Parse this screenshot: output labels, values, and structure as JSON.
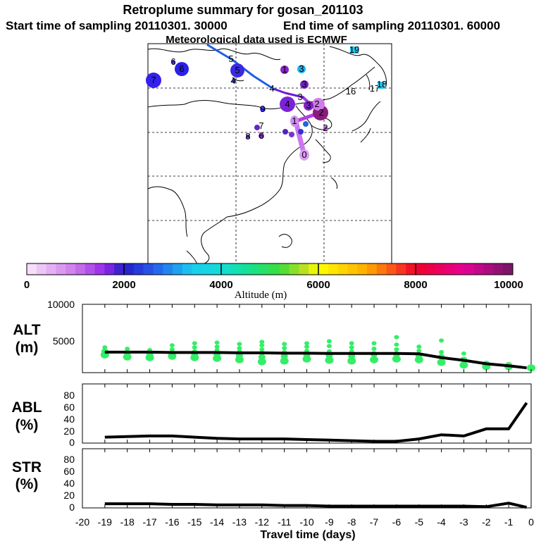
{
  "chart_data": [
    {
      "type": "scatter",
      "panel": "map",
      "title": "Retroplume summary for gosan_201103",
      "subtitle_left": "Start time of sampling 20110301. 30000",
      "subtitle_right": "End time of sampling 20110301. 60000",
      "subtitle_met": "Meteorological data used is ECMWF",
      "lon_range": [
        90,
        145
      ],
      "lat_range": [
        10,
        60
      ],
      "points": [
        {
          "label": "0",
          "lon": 126.2,
          "lat": 33.3,
          "alt": 700
        },
        {
          "label": "1",
          "lon": 124.8,
          "lat": 37.6,
          "alt": 1200
        },
        {
          "label": "2",
          "lon": 128.8,
          "lat": 38.4,
          "alt": 9000
        },
        {
          "label": "2",
          "lon": 127.5,
          "lat": 40.8,
          "alt": 1500
        },
        {
          "label": "3",
          "lon": 126.9,
          "lat": 40.2,
          "alt": 2100
        },
        {
          "label": "3",
          "lon": 124.0,
          "lat": 42.3,
          "alt": 2400
        },
        {
          "label": "4",
          "lon": 122.0,
          "lat": 40.5,
          "alt": 1900
        },
        {
          "label": "4",
          "lon": 118.0,
          "lat": 43.5,
          "alt": 2800
        },
        {
          "label": "5",
          "lon": 110.0,
          "lat": 50.5,
          "alt": 2900
        },
        {
          "label": "6",
          "lon": 97.5,
          "lat": 49.5,
          "alt": 2500
        },
        {
          "label": "7",
          "lon": 91.5,
          "lat": 47.5,
          "alt": 2600
        },
        {
          "label": "3",
          "lon": 126.5,
          "lat": 50.0,
          "alt": 3700
        },
        {
          "label": "3",
          "lon": 125.5,
          "lat": 44.0,
          "alt": 2300
        },
        {
          "label": "1",
          "lon": 123.0,
          "lat": 50.0,
          "alt": 2200
        },
        {
          "label": "6",
          "lon": 94.5,
          "lat": 53.0,
          "alt": 2500
        },
        {
          "label": "4",
          "lon": 109.0,
          "lat": 46.0,
          "alt": 2500
        },
        {
          "label": "9",
          "lon": 115.5,
          "lat": 40.5,
          "alt": 2300
        },
        {
          "label": "7",
          "lon": 114.5,
          "lat": 37.5,
          "alt": 2000
        },
        {
          "label": "6",
          "lon": 113.0,
          "lat": 35.5,
          "alt": 1500
        },
        {
          "label": "8",
          "lon": 111.0,
          "lat": 34.0,
          "alt": 1800
        },
        {
          "label": "2",
          "lon": 129.5,
          "lat": 36.5,
          "alt": 2300
        },
        {
          "label": "16",
          "lon": 132.5,
          "lat": 50.5,
          "alt": 3500
        },
        {
          "label": "17",
          "lon": 138.0,
          "lat": 49.5,
          "alt": 3200
        },
        {
          "label": "18",
          "lon": 140.0,
          "lat": 50.5,
          "alt": 3600
        },
        {
          "label": "19",
          "lon": 135.0,
          "lat": 57.5,
          "alt": 3400
        }
      ],
      "colorbar": {
        "ticks": [
          "0",
          "2000",
          "4000",
          "6000",
          "8000",
          "10000"
        ],
        "label": "Altitude (m)",
        "min": 0,
        "max": 10000
      }
    },
    {
      "type": "line",
      "panel": "ALT",
      "ylabel": [
        "ALT",
        "(m)"
      ],
      "xlim": [
        -20,
        0
      ],
      "ylim": [
        0,
        10000
      ],
      "yticks": [
        "10000",
        "5000"
      ],
      "x": [
        -19,
        -18,
        -17,
        -16,
        -15,
        -14,
        -13,
        -12,
        -11,
        -10,
        -9,
        -8,
        -7,
        -6,
        -5,
        -4,
        -3,
        -2,
        -1,
        -0.2
      ],
      "y": [
        3000,
        3000,
        3000,
        2950,
        2950,
        2950,
        2900,
        2900,
        2850,
        2850,
        2800,
        2800,
        2800,
        2800,
        2750,
        2200,
        1800,
        1300,
        1000,
        700
      ]
    },
    {
      "type": "line",
      "panel": "ABL",
      "ylabel": [
        "ABL",
        "(%)"
      ],
      "xlim": [
        -20,
        0
      ],
      "ylim": [
        0,
        100
      ],
      "yticks": [
        "0",
        "20",
        "40",
        "60",
        "80"
      ],
      "x": [
        -19,
        -18,
        -17,
        -16,
        -15,
        -14,
        -13,
        -12,
        -11,
        -10,
        -9,
        -8,
        -7,
        -6,
        -5,
        -4,
        -3,
        -2,
        -1,
        -0.2
      ],
      "y": [
        10,
        11,
        12,
        12,
        10,
        8,
        7,
        7,
        7,
        6,
        5,
        4,
        3,
        3,
        7,
        14,
        12,
        24,
        24,
        68
      ]
    },
    {
      "type": "line",
      "panel": "STR",
      "ylabel": [
        "STR",
        "(%)"
      ],
      "xlim": [
        -20,
        0
      ],
      "ylim": [
        0,
        100
      ],
      "yticks": [
        "0",
        "20",
        "40",
        "60",
        "80"
      ],
      "xlabel": "Travel time (days)",
      "xticks": [
        "-20",
        "-19",
        "-18",
        "-17",
        "-16",
        "-15",
        "-14",
        "-13",
        "-12",
        "-11",
        "-10",
        "-9",
        "-8",
        "-7",
        "-6",
        "-5",
        "-4",
        "-3",
        "-2",
        "-1",
        "0"
      ],
      "x": [
        -19,
        -18,
        -17,
        -16,
        -15,
        -14,
        -13,
        -12,
        -11,
        -10,
        -9,
        -8,
        -7,
        -6,
        -5,
        -4,
        -3,
        -2,
        -1,
        -0.2
      ],
      "y": [
        7,
        7,
        7,
        6,
        6,
        5,
        5,
        5,
        4,
        4,
        3,
        3,
        3,
        3,
        3,
        3,
        3,
        2,
        8,
        1
      ]
    }
  ],
  "cluster_dots": [
    {
      "day": -19,
      "alts": [
        2600,
        3100,
        3700
      ]
    },
    {
      "day": -18,
      "alts": [
        2300,
        2900,
        3500
      ]
    },
    {
      "day": -17,
      "alts": [
        2200,
        2700,
        3300
      ]
    },
    {
      "day": -16,
      "alts": [
        2400,
        2800,
        3400,
        4000
      ]
    },
    {
      "day": -15,
      "alts": [
        2200,
        2600,
        3100,
        3700,
        4300
      ]
    },
    {
      "day": -14,
      "alts": [
        2100,
        2700,
        3300,
        3800,
        4400
      ]
    },
    {
      "day": -13,
      "alts": [
        1900,
        2500,
        3100,
        3600,
        4200
      ]
    },
    {
      "day": -12,
      "alts": [
        1600,
        2300,
        2900,
        3400,
        4000,
        4500
      ]
    },
    {
      "day": -11,
      "alts": [
        1700,
        2400,
        3000,
        3600,
        4200
      ]
    },
    {
      "day": -10,
      "alts": [
        2000,
        2600,
        3200,
        3800,
        4300
      ]
    },
    {
      "day": -9,
      "alts": [
        1800,
        2500,
        3100,
        3900,
        4600
      ]
    },
    {
      "day": -8,
      "alts": [
        1700,
        2400,
        3100,
        3700,
        4300
      ]
    },
    {
      "day": -7,
      "alts": [
        1900,
        2700,
        3500,
        4300
      ]
    },
    {
      "day": -6,
      "alts": [
        2000,
        2700,
        3400,
        4100,
        5200
      ]
    },
    {
      "day": -5,
      "alts": [
        1900,
        2500,
        3200,
        3800
      ]
    },
    {
      "day": -4,
      "alts": [
        1500,
        2300,
        3000,
        4700
      ]
    },
    {
      "day": -3,
      "alts": [
        1100,
        1900,
        2800
      ]
    },
    {
      "day": -2,
      "alts": [
        900,
        1300
      ]
    },
    {
      "day": -1,
      "alts": [
        900,
        1100
      ]
    },
    {
      "day": 0,
      "alts": [
        700
      ]
    }
  ],
  "colors": {
    "line": "#000000",
    "dots": "#33ee66",
    "trajectory_low": "#cc77ee",
    "trajectory_mid": "#6a1cd6",
    "trajectory_high": "#1f5fe6"
  }
}
